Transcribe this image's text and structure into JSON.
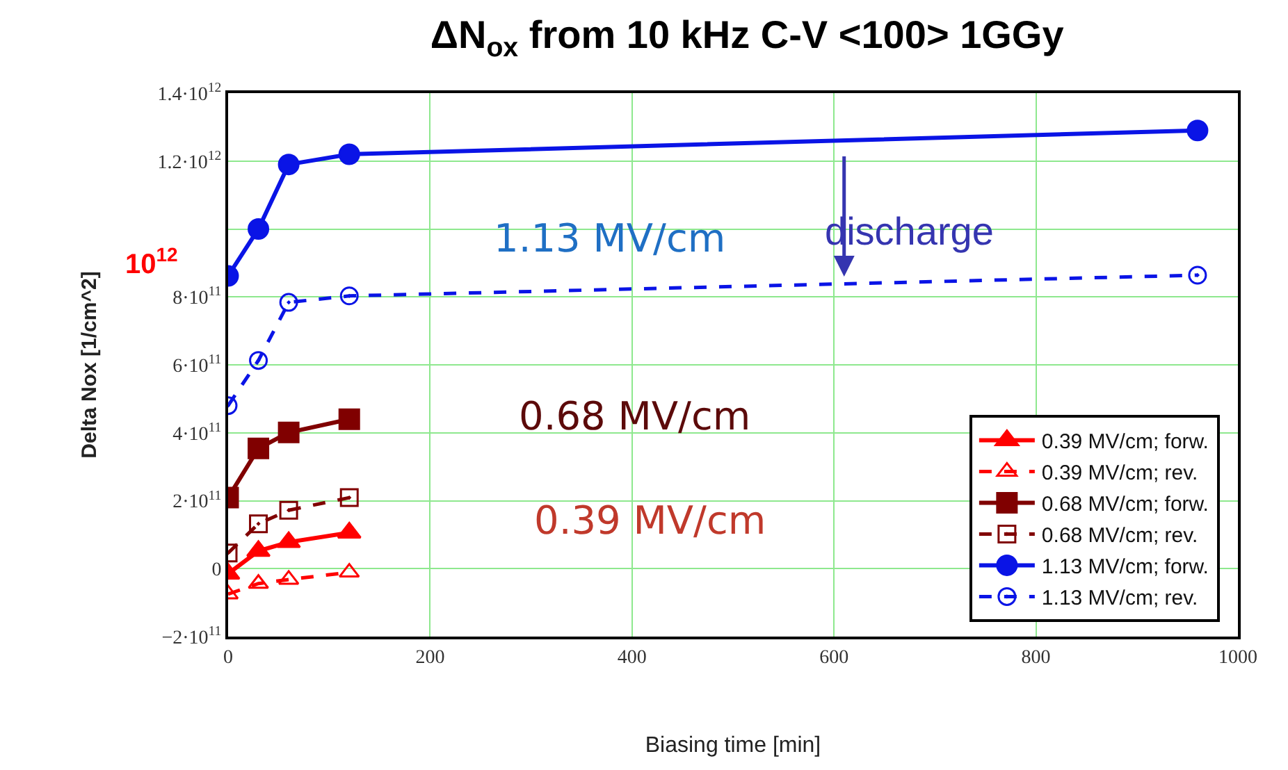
{
  "chart_data": {
    "type": "line",
    "title": "ΔN$_{ox}$ from 10 kHz C-V <100> 1GGy",
    "xlabel": "Biasing time [min]",
    "ylabel": "Delta Nox [1/cm^2]",
    "x": [
      0,
      30,
      60,
      120,
      960
    ],
    "series": [
      {
        "name": "0.39 MV/cm; forw.",
        "color": "#ff0000",
        "marker": "triangle",
        "line_style": "solid",
        "values": [
          -15000000000.0,
          52000000000.0,
          78000000000.0,
          106000000000.0,
          null
        ]
      },
      {
        "name": "0.39 MV/cm; rev.",
        "color": "#ff0000",
        "marker": "triangle",
        "line_style": "dashed",
        "values": [
          -75000000000.0,
          -44000000000.0,
          -32000000000.0,
          -11000000000.0,
          null
        ]
      },
      {
        "name": "0.68 MV/cm; forw.",
        "color": "#800000",
        "marker": "square",
        "line_style": "solid",
        "values": [
          209000000000.0,
          354000000000.0,
          401000000000.0,
          440000000000.0,
          null
        ]
      },
      {
        "name": "0.68 MV/cm; rev.",
        "color": "#800000",
        "marker": "square",
        "line_style": "dashed",
        "values": [
          46000000000.0,
          132000000000.0,
          172000000000.0,
          209000000000.0,
          null
        ]
      },
      {
        "name": "1.13 MV/cm; forw.",
        "color": "#0a14e6",
        "marker": "circle",
        "line_style": "solid",
        "values": [
          862000000000.0,
          1000000000000.0,
          1190000000000.0,
          1220000000000.0,
          1290000000000.0
        ]
      },
      {
        "name": "1.13 MV/cm; rev.",
        "color": "#0a14e6",
        "marker": "circle",
        "line_style": "dashed",
        "values": [
          480000000000.0,
          613000000000.0,
          784000000000.0,
          803000000000.0,
          864000000000.0
        ]
      }
    ],
    "xlim": [
      0,
      1000
    ],
    "xticks": [
      0,
      200,
      400,
      600,
      800,
      1000
    ],
    "ylim": [
      -200000000000.0,
      1400000000000.0
    ],
    "yticks": [
      {
        "value": -200000000000.0,
        "label": "−2·10$^{11}$"
      },
      {
        "value": 0,
        "label": "0"
      },
      {
        "value": 200000000000.0,
        "label": "2·10$^{11}$"
      },
      {
        "value": 400000000000.0,
        "label": "4·10$^{11}$"
      },
      {
        "value": 600000000000.0,
        "label": "6·10$^{11}$"
      },
      {
        "value": 800000000000.0,
        "label": "8·10$^{11}$"
      },
      {
        "value": 1000000000000.0,
        "label": null
      },
      {
        "value": 1200000000000.0,
        "label": "1.2·10$^{12}$"
      },
      {
        "value": 1400000000000.0,
        "label": "1.4·10$^{12}$"
      }
    ],
    "grid": true,
    "legend": "bottom right",
    "annotations": [
      "10$^{12}$",
      "1.13 MV/cm",
      "0.68 MV/cm",
      "0.39 MV/cm",
      {
        "text": "discharge",
        "x": 610,
        "y": 860000000000.0
      }
    ]
  }
}
